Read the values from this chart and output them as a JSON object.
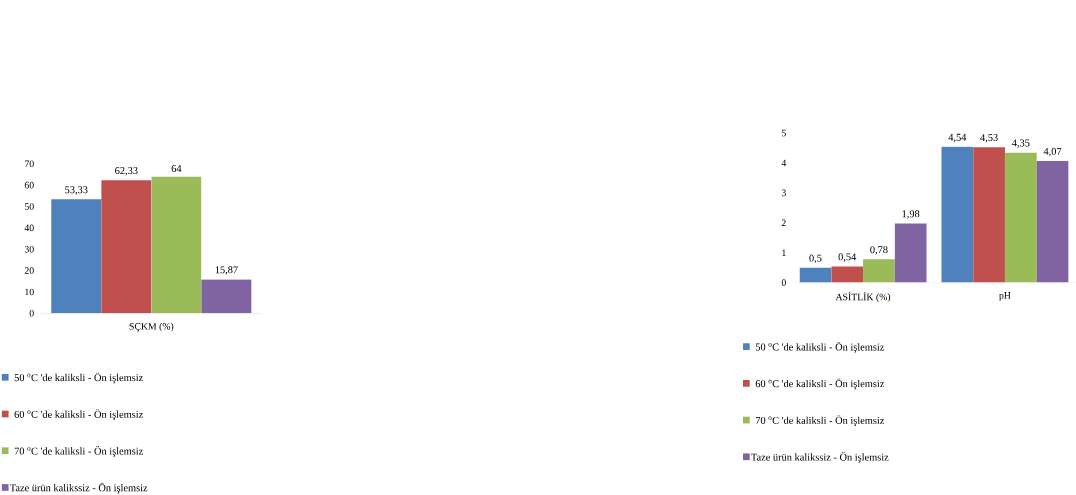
{
  "chart_data": [
    {
      "type": "bar",
      "categories": [
        "SÇKM (%)"
      ],
      "ylim": [
        0,
        70
      ],
      "yticks": [
        0,
        10,
        20,
        30,
        40,
        50,
        60,
        70
      ],
      "legend": "bottom",
      "series": [
        {
          "name": "50 $^{o}$C 'de kaliksli - Ön işlemsiz",
          "color": "#4f81bd",
          "values": [
            53.33
          ],
          "value_labels": [
            "53,33"
          ]
        },
        {
          "name": "60 $^{o}$C 'de kaliksli - Ön işlemsiz",
          "color": "#c0504d",
          "values": [
            62.33
          ],
          "value_labels": [
            "62,33"
          ]
        },
        {
          "name": "70 $^{o}$C 'de kaliksli - Ön işlemsiz",
          "color": "#9bbb59",
          "values": [
            64
          ],
          "value_labels": [
            "64"
          ]
        },
        {
          "name": "Taze ürün kalikssiz - Ön işlemsiz",
          "color": "#8064a2",
          "values": [
            15.87
          ],
          "value_labels": [
            "15,87"
          ]
        }
      ]
    },
    {
      "type": "bar",
      "categories": [
        "ASİTLİK (%)",
        "pH"
      ],
      "ylim": [
        0,
        5
      ],
      "yticks": [
        0,
        1,
        2,
        3,
        4,
        5
      ],
      "legend": "bottom",
      "series": [
        {
          "name": "50 $^{o}$C 'de kaliksli - Ön işlemsiz",
          "color": "#4f81bd",
          "values": [
            0.5,
            4.54
          ],
          "value_labels": [
            "0,5",
            "4,54"
          ]
        },
        {
          "name": "60 $^{o}$C 'de kaliksli - Ön işlemsiz",
          "color": "#c0504d",
          "values": [
            0.54,
            4.53
          ],
          "value_labels": [
            "0,54",
            "4,53"
          ]
        },
        {
          "name": "70 $^{o}$C 'de kaliksli - Ön işlemsiz",
          "color": "#9bbb59",
          "values": [
            0.78,
            4.35
          ],
          "value_labels": [
            "0,78",
            "4,35"
          ]
        },
        {
          "name": "Taze ürün kalikssiz - Ön işlemsiz",
          "color": "#8064a2",
          "values": [
            1.98,
            4.07
          ],
          "value_labels": [
            "1,98",
            "4,07"
          ]
        }
      ]
    }
  ]
}
